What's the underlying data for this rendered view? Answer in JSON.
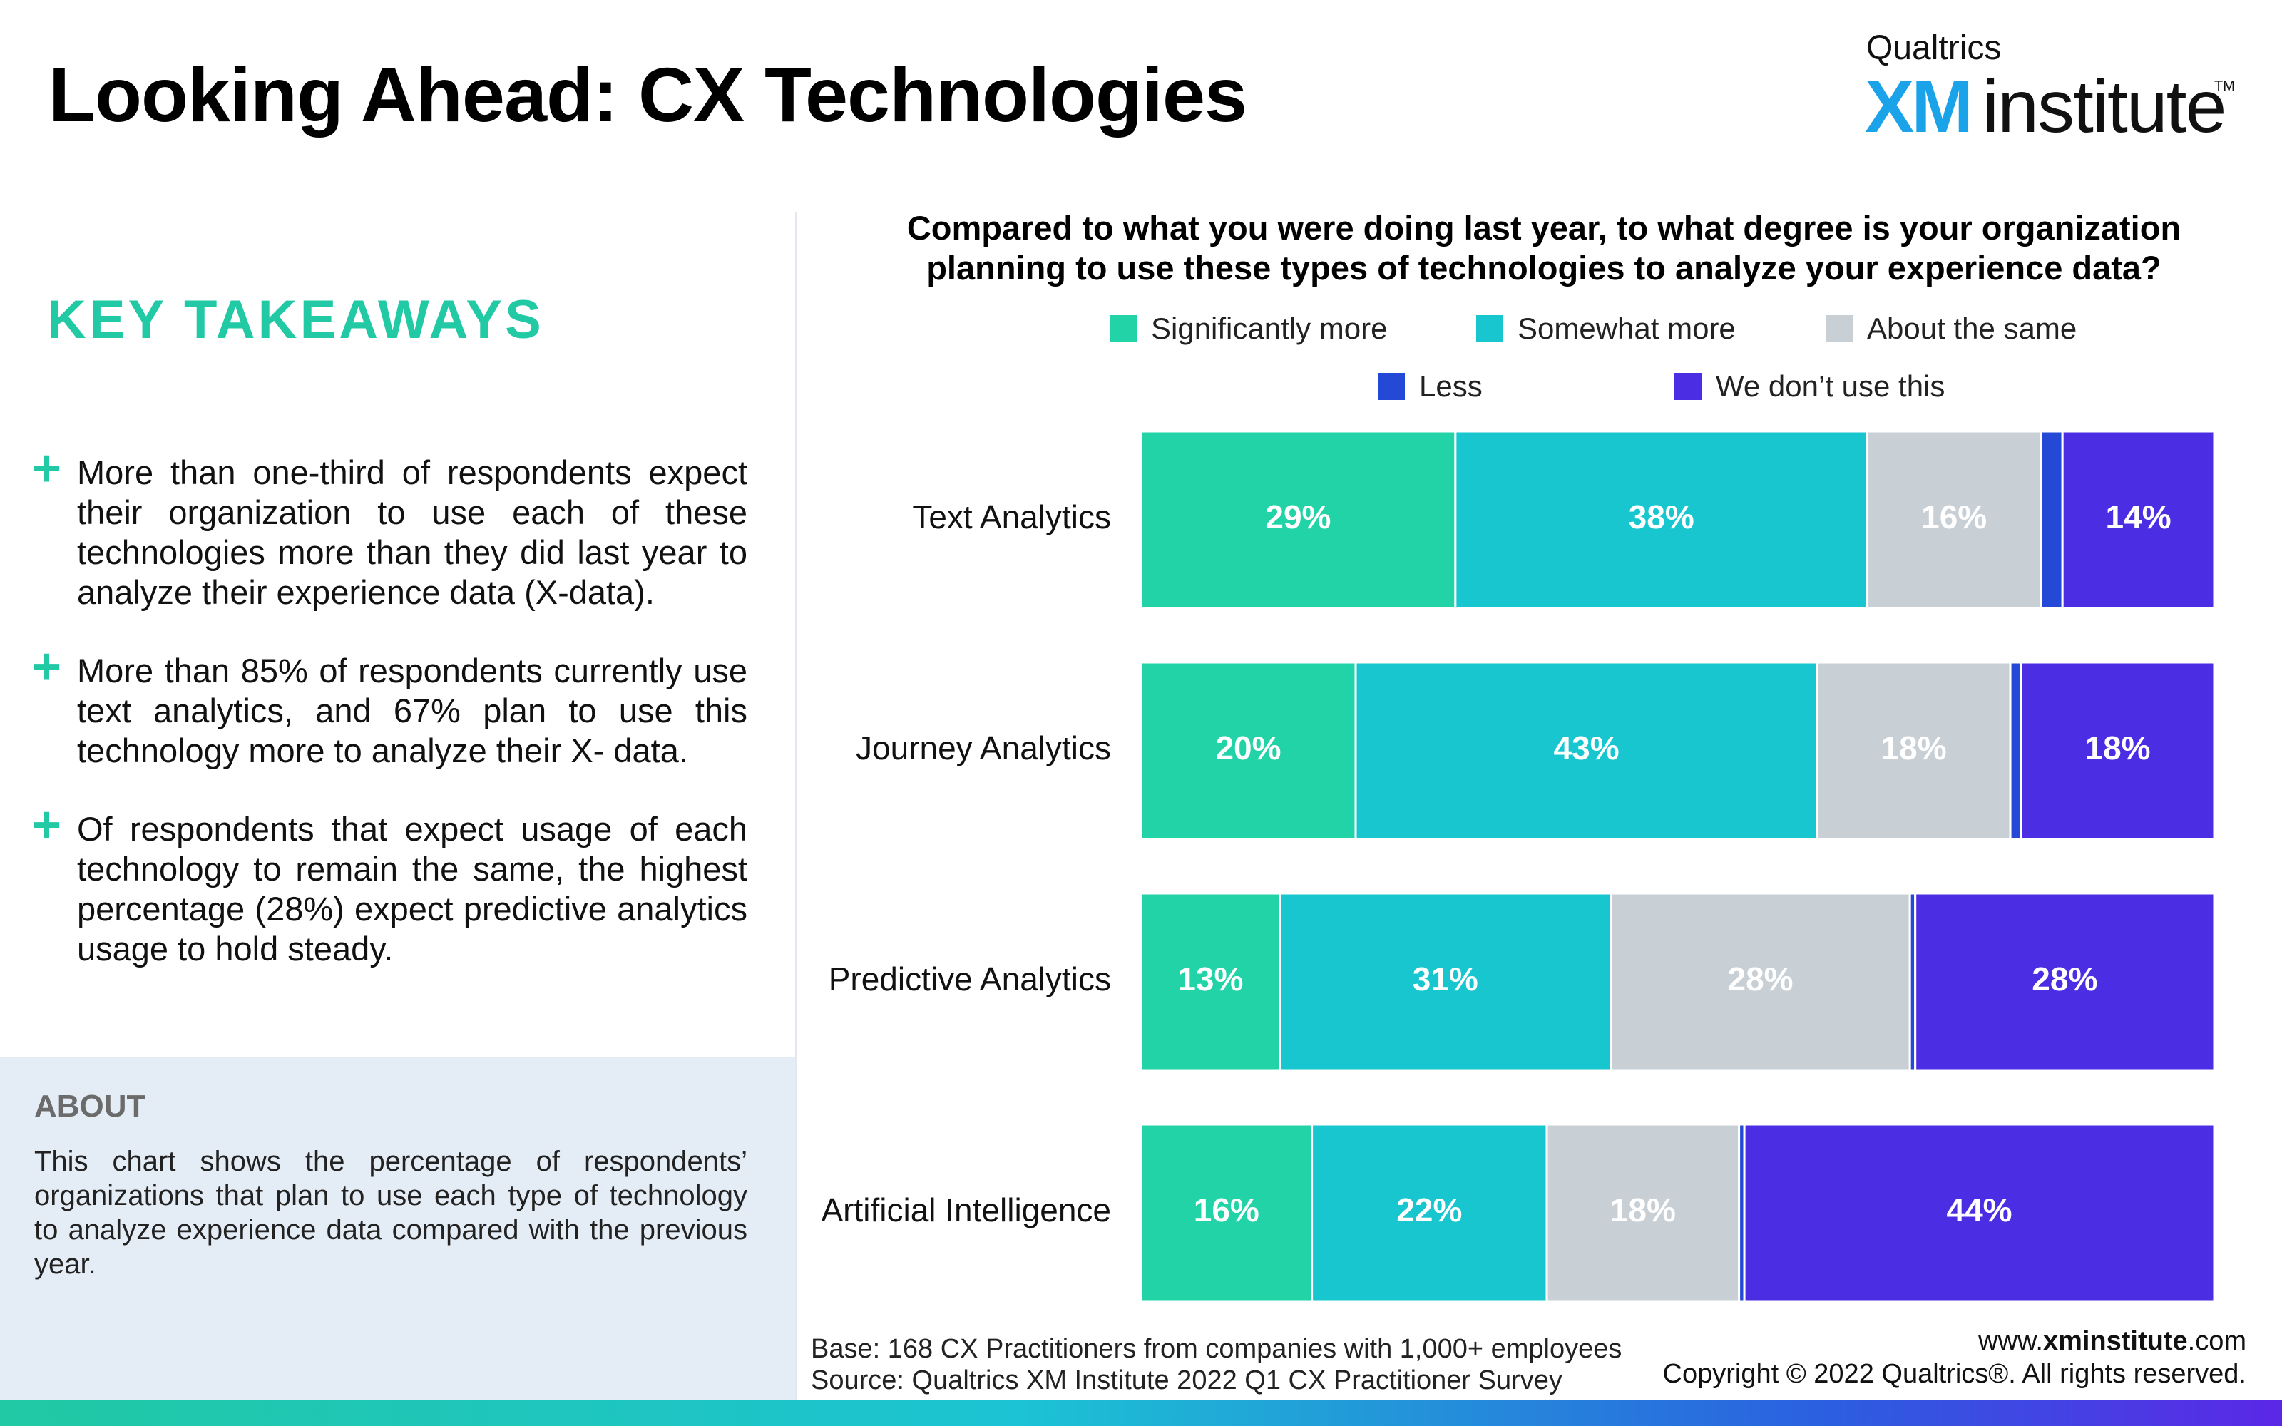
{
  "header": {
    "title": "Looking Ahead: CX Technologies",
    "logo_top": "Qualtrics",
    "logo_xm": "XM",
    "logo_institute": "institute",
    "logo_tm": "TM"
  },
  "takeaways": {
    "heading": "KEY TAKEAWAYS",
    "items": [
      "More than one-third of respondents expect their organization to use each of these technologies more than they did last year to analyze their experience data (X-data).",
      "More than 85% of respondents currently use text analytics, and 67% plan to use this technology more to analyze their X- data.",
      "Of respondents that expect usage of each technology to remain the same, the highest percentage (28%) expect predictive analytics usage to hold steady."
    ]
  },
  "about": {
    "heading": "ABOUT",
    "text": "This chart shows the percentage of respondents’ organizations that plan to use each type of technology to analyze experience data compared with the previous year."
  },
  "chart_data": {
    "type": "bar",
    "orientation": "horizontal",
    "stacked": true,
    "title": "Compared to what you were doing last year, to what degree is your organization planning to use these types of technologies to analyze your experience data?",
    "categories": [
      "Text Analytics",
      "Journey Analytics",
      "Predictive Analytics",
      "Artificial Intelligence"
    ],
    "series": [
      {
        "name": "Significantly more",
        "color": "#22d3a7",
        "values": [
          29,
          20,
          13,
          16
        ],
        "labels": [
          "29%",
          "20%",
          "13%",
          "16%"
        ]
      },
      {
        "name": "Somewhat more",
        "color": "#17c6cf",
        "values": [
          38,
          43,
          31,
          22
        ],
        "labels": [
          "38%",
          "43%",
          "31%",
          "22%"
        ]
      },
      {
        "name": "About the same",
        "color": "#c8d0d6",
        "values": [
          16,
          18,
          28,
          18
        ],
        "labels": [
          "16%",
          "18%",
          "28%",
          "18%"
        ]
      },
      {
        "name": "Less",
        "color": "#2449d6",
        "values": [
          2,
          1,
          0.5,
          0.5
        ],
        "labels": [
          "",
          "",
          "",
          ""
        ]
      },
      {
        "name": "We don’t use this",
        "color": "#4b2ee3",
        "values": [
          14,
          18,
          28,
          44
        ],
        "labels": [
          "14%",
          "18%",
          "28%",
          "44%"
        ]
      }
    ],
    "legend_position": "top",
    "grid": false
  },
  "footer": {
    "base": "Base: 168 CX Practitioners from companies with 1,000+ employees",
    "source": "Source: Qualtrics XM Institute 2022 Q1 CX Practitioner Survey",
    "url_prefix": "www.",
    "url_bold": "xminstitute",
    "url_suffix": ".com",
    "copyright": "Copyright © 2022 Qualtrics®. All rights reserved."
  }
}
